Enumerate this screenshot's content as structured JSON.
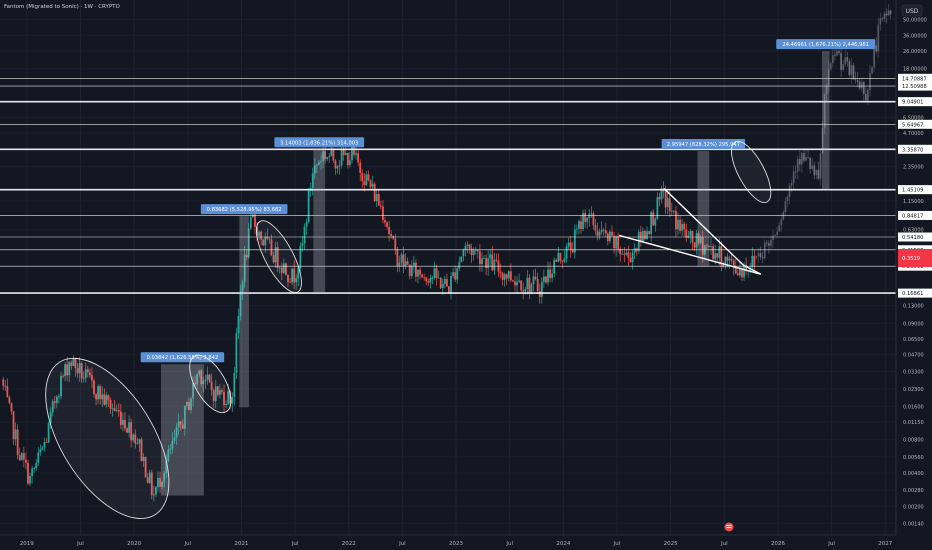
{
  "header": {
    "title": "Fantom (Migrated to Sonic) · 1W · CRYPTO",
    "currency": "USD"
  },
  "colors": {
    "background": "#131722",
    "up": "#26a69a",
    "down": "#ef5350",
    "level_line": "#ffffff",
    "measure_box": "#b2b5be",
    "measure_label": "#5b8fd6",
    "price_label": "#ffffff",
    "current_price": "#f23645"
  },
  "chart_data": {
    "type": "candlestick",
    "scale": "log",
    "ylim": [
      0.0011,
      75
    ],
    "xlim": [
      2018.75,
      2027.1
    ],
    "x_ticks": [
      {
        "x": 2019.0,
        "label": "2019"
      },
      {
        "x": 2019.5,
        "label": "Jul"
      },
      {
        "x": 2020.0,
        "label": "2020"
      },
      {
        "x": 2020.5,
        "label": "Jul"
      },
      {
        "x": 2021.0,
        "label": "2021"
      },
      {
        "x": 2021.5,
        "label": "Jul"
      },
      {
        "x": 2022.0,
        "label": "2022"
      },
      {
        "x": 2022.5,
        "label": "Jul"
      },
      {
        "x": 2023.0,
        "label": "2023"
      },
      {
        "x": 2023.5,
        "label": "Jul"
      },
      {
        "x": 2024.0,
        "label": "2024"
      },
      {
        "x": 2024.5,
        "label": "Jul"
      },
      {
        "x": 2025.0,
        "label": "2025"
      },
      {
        "x": 2025.5,
        "label": "Jul"
      },
      {
        "x": 2026.0,
        "label": "2026"
      },
      {
        "x": 2026.5,
        "label": "Jul"
      },
      {
        "x": 2027.0,
        "label": "2027"
      }
    ],
    "y_ticks": [
      {
        "value": 50.0,
        "label": "50.00000"
      },
      {
        "value": 36.0,
        "label": "36.00000"
      },
      {
        "value": 26.0,
        "label": "26.00000"
      },
      {
        "value": 18.0,
        "label": "18.00000"
      },
      {
        "value": 6.5,
        "label": "6.50000"
      },
      {
        "value": 4.7,
        "label": "4.70000"
      },
      {
        "value": 2.35,
        "label": "2.35000"
      },
      {
        "value": 1.15,
        "label": "1.15000"
      },
      {
        "value": 0.63,
        "label": "0.63000"
      },
      {
        "value": 0.13,
        "label": "0.13000"
      },
      {
        "value": 0.09,
        "label": "0.09000"
      },
      {
        "value": 0.065,
        "label": "0.06500"
      },
      {
        "value": 0.047,
        "label": "0.04700"
      },
      {
        "value": 0.033,
        "label": "0.03300"
      },
      {
        "value": 0.023,
        "label": "0.02300"
      },
      {
        "value": 0.016,
        "label": "0.01600"
      },
      {
        "value": 0.0115,
        "label": "0.01150"
      },
      {
        "value": 0.008,
        "label": "0.00800"
      },
      {
        "value": 0.0056,
        "label": "0.00560"
      },
      {
        "value": 0.004,
        "label": "0.00400"
      },
      {
        "value": 0.0028,
        "label": "0.00280"
      },
      {
        "value": 0.002,
        "label": "0.00200"
      },
      {
        "value": 0.0014,
        "label": "0.00140"
      }
    ],
    "levels": [
      {
        "value": 14.70887,
        "label": "14.70887",
        "width": 0.6
      },
      {
        "value": 12.50988,
        "label": "12.50988",
        "width": 0.6
      },
      {
        "value": 9.04901,
        "label": "9.04901",
        "width": 1.6
      },
      {
        "value": 5.64967,
        "label": "5.64967",
        "width": 0.6
      },
      {
        "value": 3.3587,
        "label": "3.35870",
        "width": 1.6
      },
      {
        "value": 1.45109,
        "label": "1.45109",
        "width": 1.6
      },
      {
        "value": 0.84817,
        "label": "0.84817",
        "width": 0.6
      },
      {
        "value": 0.5418,
        "label": "0.54180",
        "width": 0.6
      },
      {
        "value": 0.41538,
        "label": "0.41538",
        "width": 0.6
      },
      {
        "value": 0.29531,
        "label": "0.29531",
        "width": 0.6
      },
      {
        "value": 0.16861,
        "label": "0.16861",
        "width": 1.6
      }
    ],
    "current_price": {
      "value": 0.35,
      "label": "0.3519"
    },
    "measurements": [
      {
        "x0": 2020.25,
        "x1": 2020.65,
        "y0": 0.0025,
        "y1": 0.0384,
        "label": "0.03842 (1,626.55%) 3,842"
      },
      {
        "x0": 2020.98,
        "x1": 2021.07,
        "y0": 0.0157,
        "y1": 0.8369,
        "label": "0.83682 (5,528.95%) 83,682"
      },
      {
        "x0": 2021.67,
        "x1": 2021.78,
        "y0": 0.17,
        "y1": 3.3587,
        "label": "3.14003 (1,836.21%) 314,003"
      },
      {
        "x0": 2025.25,
        "x1": 2025.36,
        "y0": 0.29,
        "y1": 3.2387,
        "label": "2.95947 (828.32%) 295,947"
      },
      {
        "x0": 2026.41,
        "x1": 2026.48,
        "y0": 1.45,
        "y1": 25.9,
        "label": "24.46961 (1,676.21%) 2,446,961"
      }
    ],
    "ellipses": [
      {
        "cx": 2019.75,
        "cy": 0.0082,
        "rx": 46,
        "ry": 90,
        "angle": -32
      },
      {
        "cx": 2020.71,
        "cy": 0.0255,
        "rx": 15,
        "ry": 32,
        "angle": -30
      },
      {
        "cx": 2021.35,
        "cy": 0.36,
        "rx": 14,
        "ry": 40,
        "angle": -28
      },
      {
        "cx": 2025.75,
        "cy": 2.1,
        "rx": 13,
        "ry": 34,
        "angle": -28
      }
    ],
    "triangle": {
      "upper": [
        [
          2024.94,
          1.48
        ],
        [
          2025.68,
          0.3
        ]
      ],
      "lower": [
        [
          2024.52,
          0.56
        ],
        [
          2025.84,
          0.25
        ]
      ],
      "close": [
        [
          2025.68,
          0.3
        ],
        [
          2025.84,
          0.25
        ]
      ]
    },
    "anchors": [
      [
        2018.78,
        0.028
      ],
      [
        2018.95,
        0.006
      ],
      [
        2019.05,
        0.0035
      ],
      [
        2019.2,
        0.008
      ],
      [
        2019.3,
        0.022
      ],
      [
        2019.42,
        0.042
      ],
      [
        2019.55,
        0.03
      ],
      [
        2019.75,
        0.018
      ],
      [
        2019.9,
        0.013
      ],
      [
        2020.05,
        0.008
      ],
      [
        2020.2,
        0.0025
      ],
      [
        2020.35,
        0.006
      ],
      [
        2020.5,
        0.014
      ],
      [
        2020.62,
        0.034
      ],
      [
        2020.75,
        0.022
      ],
      [
        2020.93,
        0.019
      ],
      [
        2021.02,
        0.22
      ],
      [
        2021.12,
        0.8
      ],
      [
        2021.22,
        0.5
      ],
      [
        2021.35,
        0.35
      ],
      [
        2021.5,
        0.23
      ],
      [
        2021.58,
        0.4
      ],
      [
        2021.68,
        2.1
      ],
      [
        2021.78,
        3.1
      ],
      [
        2021.9,
        2.7
      ],
      [
        2022.05,
        3.0
      ],
      [
        2022.2,
        1.7
      ],
      [
        2022.35,
        0.9
      ],
      [
        2022.45,
        0.38
      ],
      [
        2022.6,
        0.27
      ],
      [
        2022.8,
        0.24
      ],
      [
        2022.95,
        0.19
      ],
      [
        2023.1,
        0.45
      ],
      [
        2023.25,
        0.37
      ],
      [
        2023.45,
        0.26
      ],
      [
        2023.65,
        0.21
      ],
      [
        2023.8,
        0.19
      ],
      [
        2023.95,
        0.33
      ],
      [
        2024.1,
        0.45
      ],
      [
        2024.22,
        0.9
      ],
      [
        2024.35,
        0.6
      ],
      [
        2024.5,
        0.46
      ],
      [
        2024.62,
        0.35
      ],
      [
        2024.8,
        0.65
      ],
      [
        2024.95,
        1.3
      ],
      [
        2025.05,
        0.8
      ],
      [
        2025.2,
        0.5
      ],
      [
        2025.35,
        0.45
      ],
      [
        2025.5,
        0.35
      ],
      [
        2025.65,
        0.27
      ],
      [
        2025.78,
        0.32
      ]
    ],
    "projection_anchors": [
      [
        2025.8,
        0.35
      ],
      [
        2025.95,
        0.5
      ],
      [
        2026.1,
        1.2
      ],
      [
        2026.2,
        3.0
      ],
      [
        2026.32,
        2.4
      ],
      [
        2026.4,
        1.6
      ],
      [
        2026.45,
        9.5
      ],
      [
        2026.55,
        26.0
      ],
      [
        2026.7,
        16.0
      ],
      [
        2026.85,
        11.0
      ],
      [
        2026.95,
        38.0
      ],
      [
        2027.05,
        60.0
      ]
    ]
  }
}
